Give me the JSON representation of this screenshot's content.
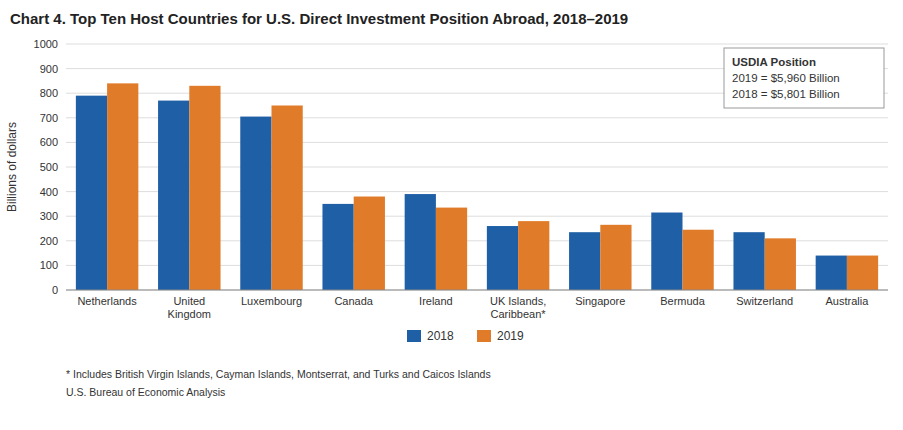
{
  "chart_data": {
    "type": "bar",
    "title": "Chart 4. Top Ten Host Countries for U.S. Direct Investment Position Abroad, 2018–2019",
    "ylabel": "Billions of dollars",
    "categories": [
      "Netherlands",
      "United\nKingdom",
      "Luxembourg",
      "Canada",
      "Ireland",
      "UK Islands,\nCaribbean*",
      "Singapore",
      "Bermuda",
      "Switzerland",
      "Australia"
    ],
    "series": [
      {
        "name": "2018",
        "color": "#1f5fa6",
        "values": [
          790,
          770,
          705,
          350,
          390,
          260,
          235,
          315,
          235,
          140
        ]
      },
      {
        "name": "2019",
        "color": "#e07b2a",
        "values": [
          840,
          830,
          750,
          380,
          335,
          280,
          265,
          245,
          210,
          140
        ]
      }
    ],
    "ylim": [
      0,
      1000
    ],
    "yticks": [
      0,
      100,
      200,
      300,
      400,
      500,
      600,
      700,
      800,
      900,
      1000
    ],
    "grid": true,
    "legend": "bottom",
    "annotation": {
      "title": "USDIA Position",
      "lines": [
        "2019 = $5,960 Billion",
        "2018 = $5,801 Billion"
      ]
    },
    "footnotes": [
      "* Includes British Virgin Islands, Cayman Islands, Montserrat, and Turks and Caicos Islands",
      "U.S. Bureau of Economic Analysis"
    ]
  }
}
